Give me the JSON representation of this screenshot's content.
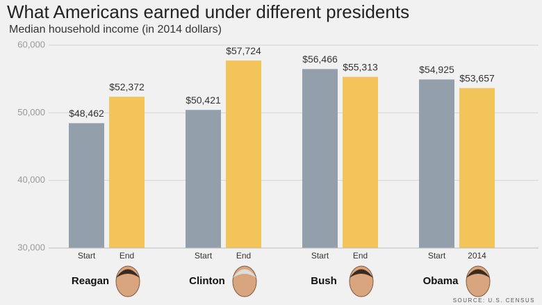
{
  "chart_data": {
    "type": "grouped_bar",
    "title": "What Americans earned under different presidents",
    "subtitle": "Median household income (in 2014 dollars)",
    "source": "SOURCE: U.S. CENSUS",
    "colors": [
      "#939fab",
      "#f2c45a"
    ],
    "groups": [
      {
        "name": "Reagan",
        "labels": [
          "Start",
          "End"
        ],
        "values": [
          48462,
          52372
        ],
        "value_labels": [
          "$48,462",
          "$52,372"
        ]
      },
      {
        "name": "Clinton",
        "labels": [
          "Start",
          "End"
        ],
        "values": [
          50421,
          57724
        ],
        "value_labels": [
          "$50,421",
          "$57,724"
        ]
      },
      {
        "name": "Bush",
        "labels": [
          "Start",
          "End"
        ],
        "values": [
          56466,
          55313
        ],
        "value_labels": [
          "$56,466",
          "$55,313"
        ]
      },
      {
        "name": "Obama",
        "labels": [
          "Start",
          "2014"
        ],
        "values": [
          54925,
          53657
        ],
        "value_labels": [
          "$54,925",
          "$53,657"
        ]
      }
    ],
    "ylim": [
      30000,
      60000
    ],
    "yticks": [
      {
        "value": 30000,
        "label": "30,000"
      },
      {
        "value": 40000,
        "label": "40,000"
      },
      {
        "value": 50000,
        "label": "50,000"
      },
      {
        "value": 60000,
        "label": "60,000"
      }
    ],
    "grid": true
  }
}
